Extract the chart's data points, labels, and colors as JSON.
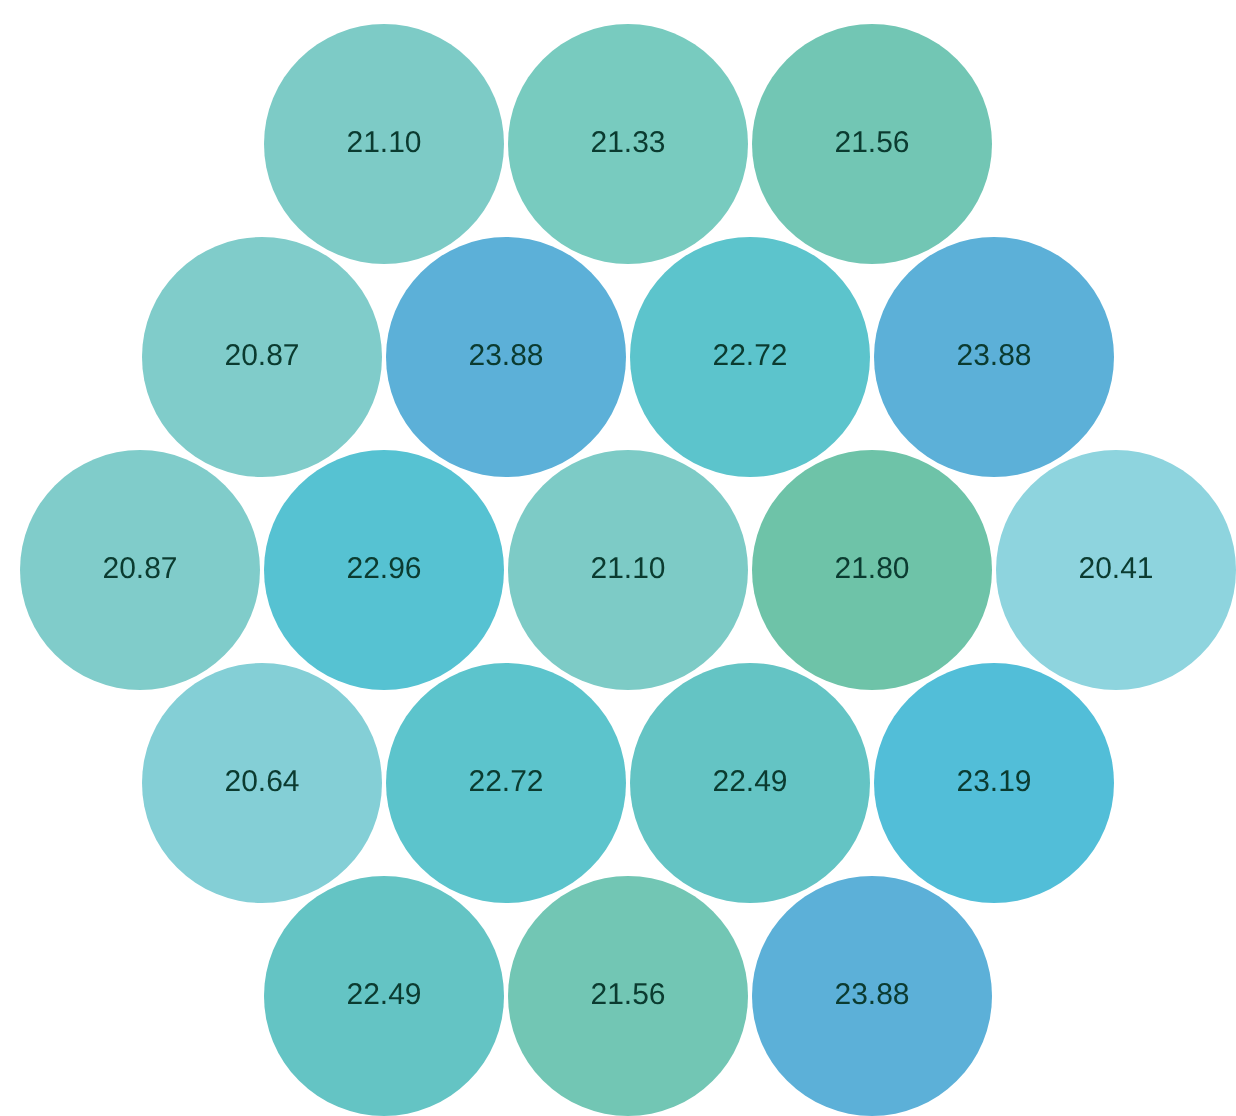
{
  "chart_data": {
    "type": "other",
    "data_labels": true,
    "values": [
      21.1,
      21.33,
      21.56,
      20.87,
      23.88,
      22.72,
      23.88,
      20.87,
      22.96,
      21.1,
      21.8,
      20.41,
      20.64,
      22.72,
      22.49,
      23.19,
      22.49,
      21.56,
      23.88
    ],
    "value_labels": [
      "21.10",
      "21.33",
      "21.56",
      "20.87",
      "23.88",
      "22.72",
      "23.88",
      "20.87",
      "22.96",
      "21.10",
      "21.80",
      "20.41",
      "20.64",
      "22.72",
      "22.49",
      "23.19",
      "22.49",
      "21.56",
      "23.88"
    ],
    "colors": [
      "#7dcbc6",
      "#78cbbf",
      "#72c6b4",
      "#80ccca",
      "#5cb0d8",
      "#5cc4cc",
      "#5cb0d8",
      "#80ccca",
      "#56c2d2",
      "#7dcbc6",
      "#6ec3a8",
      "#8ed4de",
      "#84cfd6",
      "#5cc4cc",
      "#64c4c4",
      "#52bed8",
      "#64c4c4",
      "#72c6b4",
      "#5cb0d8"
    ]
  }
}
